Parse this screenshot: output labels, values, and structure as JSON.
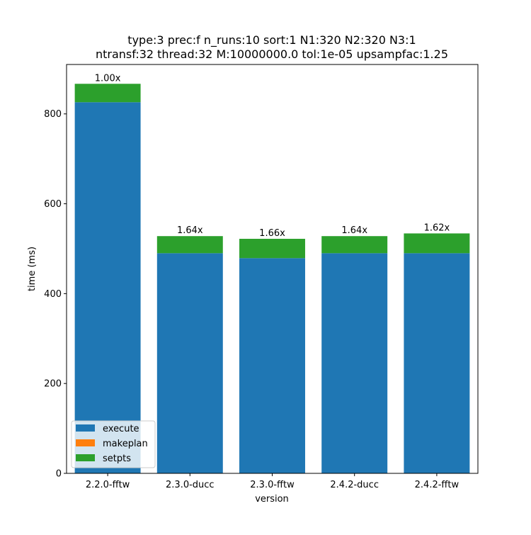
{
  "chart_data": {
    "type": "bar",
    "stacked": true,
    "title_line1": "type:3 prec:f n_runs:10 sort:1 N1:320 N2:320 N3:1",
    "title_line2": "ntransf:32 thread:32 M:10000000.0 tol:1e-05 upsampfac:1.25",
    "xlabel": "version",
    "ylabel": "time (ms)",
    "ylim": [
      0,
      910
    ],
    "yticks": [
      0,
      200,
      400,
      600,
      800
    ],
    "categories": [
      "2.2.0-fftw",
      "2.3.0-ducc",
      "2.3.0-fftw",
      "2.4.2-ducc",
      "2.4.2-fftw"
    ],
    "series": [
      {
        "name": "execute",
        "color": "#1f77b4",
        "values": [
          826,
          490,
          479,
          490,
          490
        ]
      },
      {
        "name": "makeplan",
        "color": "#ff7f0e",
        "values": [
          0,
          0,
          0,
          0,
          0
        ]
      },
      {
        "name": "setpts",
        "color": "#2ca02c",
        "values": [
          41,
          38,
          43,
          38,
          44
        ]
      }
    ],
    "bar_labels": [
      "1.00x",
      "1.64x",
      "1.66x",
      "1.64x",
      "1.62x"
    ],
    "legend_position": "lower-left",
    "grid": false
  }
}
